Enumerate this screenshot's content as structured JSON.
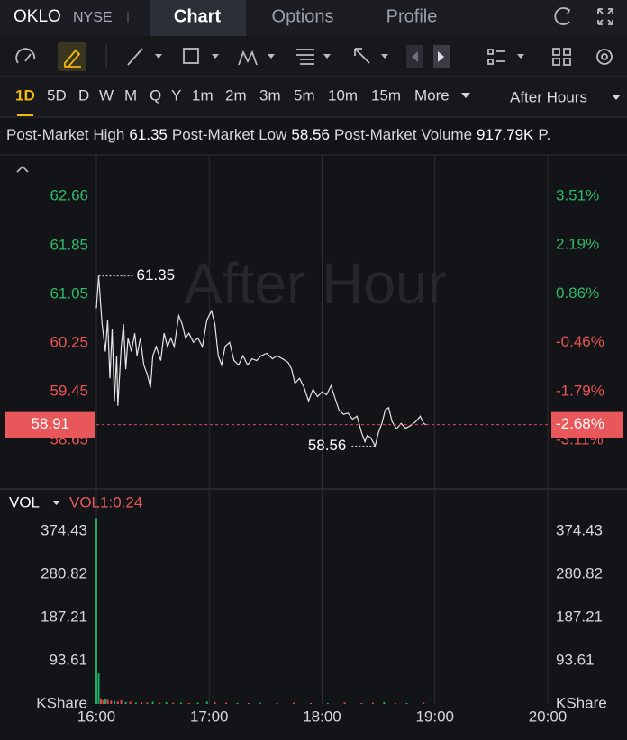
{
  "header": {
    "ticker": "OKLO",
    "exchange": "NYSE",
    "tabs": [
      "Chart",
      "Options",
      "Profile"
    ],
    "active_tab": 0
  },
  "periods": [
    "1D",
    "5D",
    "D",
    "W",
    "M",
    "Q",
    "Y",
    "1m",
    "2m",
    "3m",
    "5m",
    "10m",
    "15m",
    "More"
  ],
  "active_period": 0,
  "session": "After Hours",
  "stats": [
    {
      "label": "Post-Market High",
      "value": "61.35"
    },
    {
      "label": "Post-Market Low",
      "value": "58.56"
    },
    {
      "label": "Post-Market Volume",
      "value": "917.79K"
    },
    {
      "label": "P."
    }
  ],
  "watermark": "After Hour",
  "chart_data": [
    {
      "type": "line",
      "color": "#e6e6e6",
      "x": [
        16.0,
        16.02,
        16.05,
        16.08,
        16.1,
        16.12,
        16.14,
        16.16,
        16.18,
        16.19,
        16.22,
        16.24,
        16.26,
        16.28,
        16.31,
        16.34,
        16.36,
        16.39,
        16.42,
        16.45,
        16.48,
        16.5,
        16.53,
        16.57,
        16.6,
        16.63,
        16.66,
        16.69,
        16.73,
        16.76,
        16.79,
        16.82,
        16.86,
        16.9,
        16.94,
        16.98,
        17.02,
        17.05,
        17.08,
        17.11,
        17.14,
        17.18,
        17.22,
        17.26,
        17.3,
        17.34,
        17.38,
        17.42,
        17.46,
        17.51,
        17.56,
        17.6,
        17.65,
        17.7,
        17.73,
        17.76,
        17.8,
        17.84,
        17.88,
        17.92,
        17.96,
        18.0,
        18.04,
        18.08,
        18.11,
        18.15,
        18.19,
        18.23,
        18.27,
        18.31,
        18.35,
        18.38,
        18.4,
        18.43,
        18.47,
        18.5,
        18.53,
        18.56,
        18.59,
        18.62,
        18.66,
        18.7,
        18.74,
        18.79,
        18.83,
        18.87,
        18.9,
        18.92
      ],
      "values": [
        60.82,
        61.35,
        60.56,
        60.11,
        60.63,
        59.67,
        60.48,
        59.3,
        60.04,
        59.22,
        60.19,
        60.56,
        59.82,
        60.33,
        60.11,
        60.41,
        60.04,
        60.33,
        59.89,
        59.74,
        59.52,
        60.04,
        60.19,
        59.96,
        60.41,
        60.19,
        60.33,
        60.19,
        60.7,
        60.56,
        60.33,
        60.41,
        60.26,
        60.33,
        60.19,
        60.63,
        60.78,
        60.56,
        60.04,
        59.89,
        60.19,
        60.26,
        59.96,
        59.89,
        60.04,
        59.89,
        59.99,
        59.96,
        60.04,
        60.08,
        59.99,
        60.04,
        59.99,
        59.93,
        59.82,
        59.59,
        59.67,
        59.52,
        59.3,
        59.49,
        59.37,
        59.45,
        59.4,
        59.55,
        59.37,
        59.15,
        59.08,
        59.1,
        59.0,
        59.05,
        58.78,
        58.63,
        58.73,
        58.7,
        58.56,
        58.78,
        58.93,
        59.15,
        59.19,
        58.96,
        58.84,
        58.93,
        58.85,
        58.9,
        58.96,
        59.05,
        58.93,
        58.91
      ],
      "xlim": [
        16,
        20
      ],
      "ylim": [
        57.87,
        63.34
      ],
      "yticks": [
        62.66,
        61.85,
        61.05,
        60.25,
        59.45,
        58.65
      ],
      "y2lim": [
        -4.4,
        4.63
      ],
      "y2ticks": [
        {
          "value": 3.51,
          "label": "3.51%"
        },
        {
          "value": 2.19,
          "label": "2.19%"
        },
        {
          "value": 0.86,
          "label": "0.86%"
        },
        {
          "value": -0.46,
          "label": "-0.46%"
        },
        {
          "value": -1.79,
          "label": "-1.79%"
        },
        {
          "value": -3.11,
          "label": "-3.11%"
        }
      ],
      "last_price": 58.91,
      "last_change": {
        "value": -2.68,
        "label": "-2.68%"
      },
      "annotations": [
        {
          "x": 16.02,
          "value": 61.35
        },
        {
          "x": 18.47,
          "value": 58.56
        }
      ]
    },
    {
      "type": "bar",
      "title": "VOL",
      "indicator": "VOL1:0.24",
      "y_label": "KShare",
      "x": [
        16.0,
        16.02,
        16.04,
        16.06,
        16.08,
        16.1,
        16.13,
        16.16,
        16.19,
        16.22,
        16.26,
        16.3,
        16.35,
        16.4,
        16.45,
        16.5,
        16.56,
        16.62,
        16.68,
        16.75,
        16.82,
        16.9,
        16.98,
        17.05,
        17.15,
        17.25,
        17.35,
        17.45,
        17.6,
        17.75,
        17.9,
        18.05,
        18.2,
        18.35,
        18.45,
        18.55,
        18.65,
        18.75,
        18.9
      ],
      "values": [
        403,
        66,
        12,
        8,
        10,
        9,
        7,
        6,
        5,
        8,
        4,
        5,
        3,
        4,
        3,
        5,
        3,
        4,
        3,
        3,
        2,
        3,
        5,
        4,
        3,
        2,
        2,
        3,
        2,
        3,
        2,
        2,
        3,
        2,
        3,
        4,
        2,
        2,
        3
      ],
      "colors": [
        "#1fae63",
        "#1fae63",
        "#e04a4a",
        "#e04a4a",
        "#1fae63",
        "#e04a4a",
        "#e04a4a",
        "#1fae63",
        "#e04a4a",
        "#e04a4a",
        "#1fae63",
        "#e04a4a",
        "#1fae63",
        "#e04a4a",
        "#e04a4a",
        "#1fae63",
        "#e04a4a",
        "#1fae63",
        "#e04a4a",
        "#1fae63",
        "#e04a4a",
        "#1fae63",
        "#1fae63",
        "#e04a4a",
        "#e04a4a",
        "#1fae63",
        "#e04a4a",
        "#1fae63",
        "#e04a4a",
        "#e04a4a",
        "#e04a4a",
        "#1fae63",
        "#e04a4a",
        "#e04a4a",
        "#e04a4a",
        "#1fae63",
        "#e04a4a",
        "#1fae63",
        "#e04a4a"
      ],
      "xlim": [
        16,
        20
      ],
      "xticks": [
        {
          "value": 16,
          "label": "16:00"
        },
        {
          "value": 17,
          "label": "17:00"
        },
        {
          "value": 18,
          "label": "18:00"
        },
        {
          "value": 19,
          "label": "19:00"
        },
        {
          "value": 20,
          "label": "20:00"
        }
      ],
      "ylim": [
        0,
        403.7
      ],
      "yticks": [
        374.43,
        280.82,
        187.21,
        93.61
      ]
    }
  ]
}
